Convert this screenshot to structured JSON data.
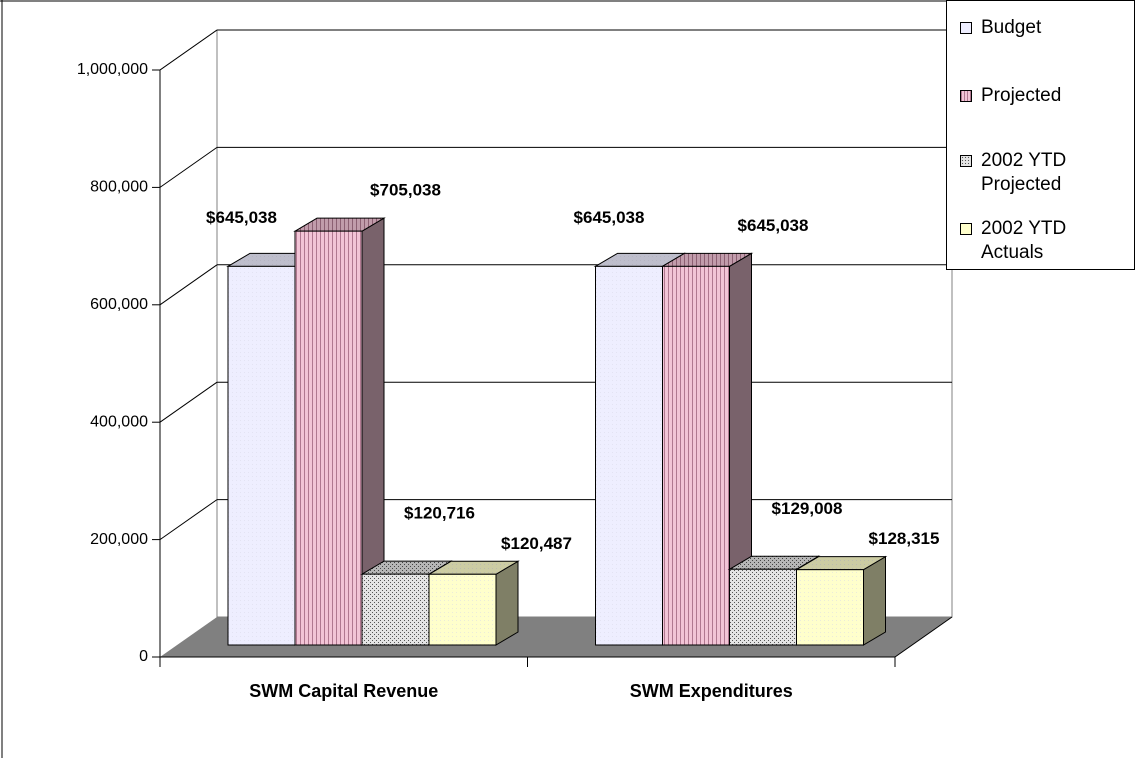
{
  "chart_data": {
    "type": "bar3d",
    "categories": [
      "SWM Capital Revenue",
      "SWM Expenditures"
    ],
    "series": [
      {
        "name": "Budget",
        "color": "#eeeeff",
        "values": [
          645038,
          645038
        ],
        "value_labels": [
          "$645,038",
          "$645,038"
        ]
      },
      {
        "name": "Projected",
        "color": "#f2c4d6",
        "values": [
          705038,
          645038
        ],
        "value_labels": [
          "$705,038",
          "$645,038"
        ]
      },
      {
        "name": "2002 YTD Projected",
        "color": "#e4e4e4",
        "values": [
          120716,
          129008
        ],
        "value_labels": [
          "$120,716",
          "$129,008"
        ]
      },
      {
        "name": "2002 YTD Actuals",
        "color": "#ffffcc",
        "values": [
          120487,
          128315
        ],
        "value_labels": [
          "$120,487",
          "$128,315"
        ]
      }
    ],
    "ylim": [
      0,
      1000000
    ],
    "yticks": [
      0,
      {
        "value": 200000,
        "label": "200,000"
      },
      {
        "value": 400000,
        "label": "400,000"
      },
      {
        "value": 600000,
        "label": "600,000"
      },
      {
        "value": 800000,
        "label": "800,000"
      },
      {
        "value": 1000000,
        "label": "1,000,000"
      }
    ],
    "grid": true,
    "legend": "upper right"
  }
}
